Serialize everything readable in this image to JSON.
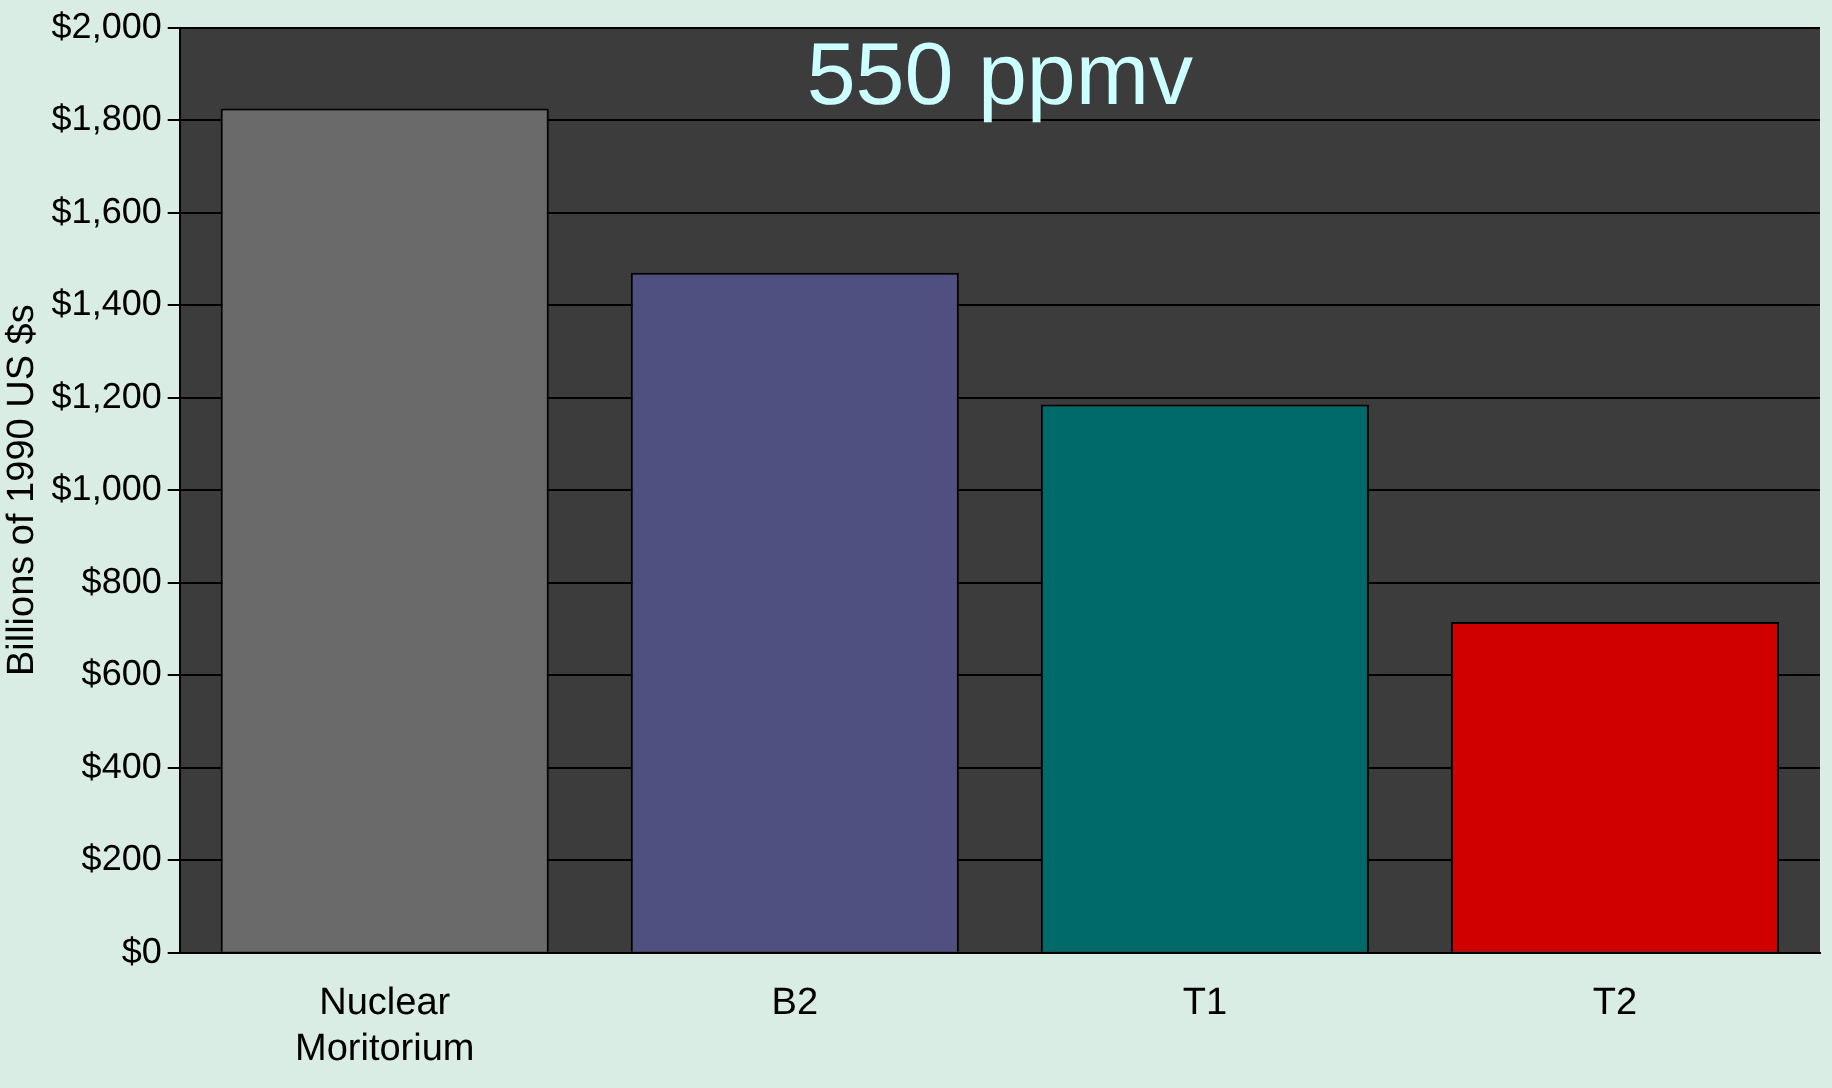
{
  "chart_data": {
    "type": "bar",
    "title": "550 ppmv",
    "ylabel": "Billions of 1990 US $s",
    "categories": [
      "Nuclear Moritorium",
      "B2",
      "T1",
      "T2"
    ],
    "values": [
      1825,
      1470,
      1185,
      715
    ],
    "colors": [
      "#6a6a6a",
      "#4f4f80",
      "#006a6a",
      "#d00000"
    ],
    "ylim": [
      0,
      2000
    ],
    "yticks": [
      {
        "value": 0,
        "label": "$0"
      },
      {
        "value": 200,
        "label": "$200"
      },
      {
        "value": 400,
        "label": "$400"
      },
      {
        "value": 600,
        "label": "$600"
      },
      {
        "value": 800,
        "label": "$800"
      },
      {
        "value": 1000,
        "label": "$1,000"
      },
      {
        "value": 1200,
        "label": "$1,200"
      },
      {
        "value": 1400,
        "label": "$1,400"
      },
      {
        "value": 1600,
        "label": "$1,600"
      },
      {
        "value": 1800,
        "label": "$1,800"
      },
      {
        "value": 2000,
        "label": "$2,000"
      }
    ],
    "grid": "y"
  }
}
